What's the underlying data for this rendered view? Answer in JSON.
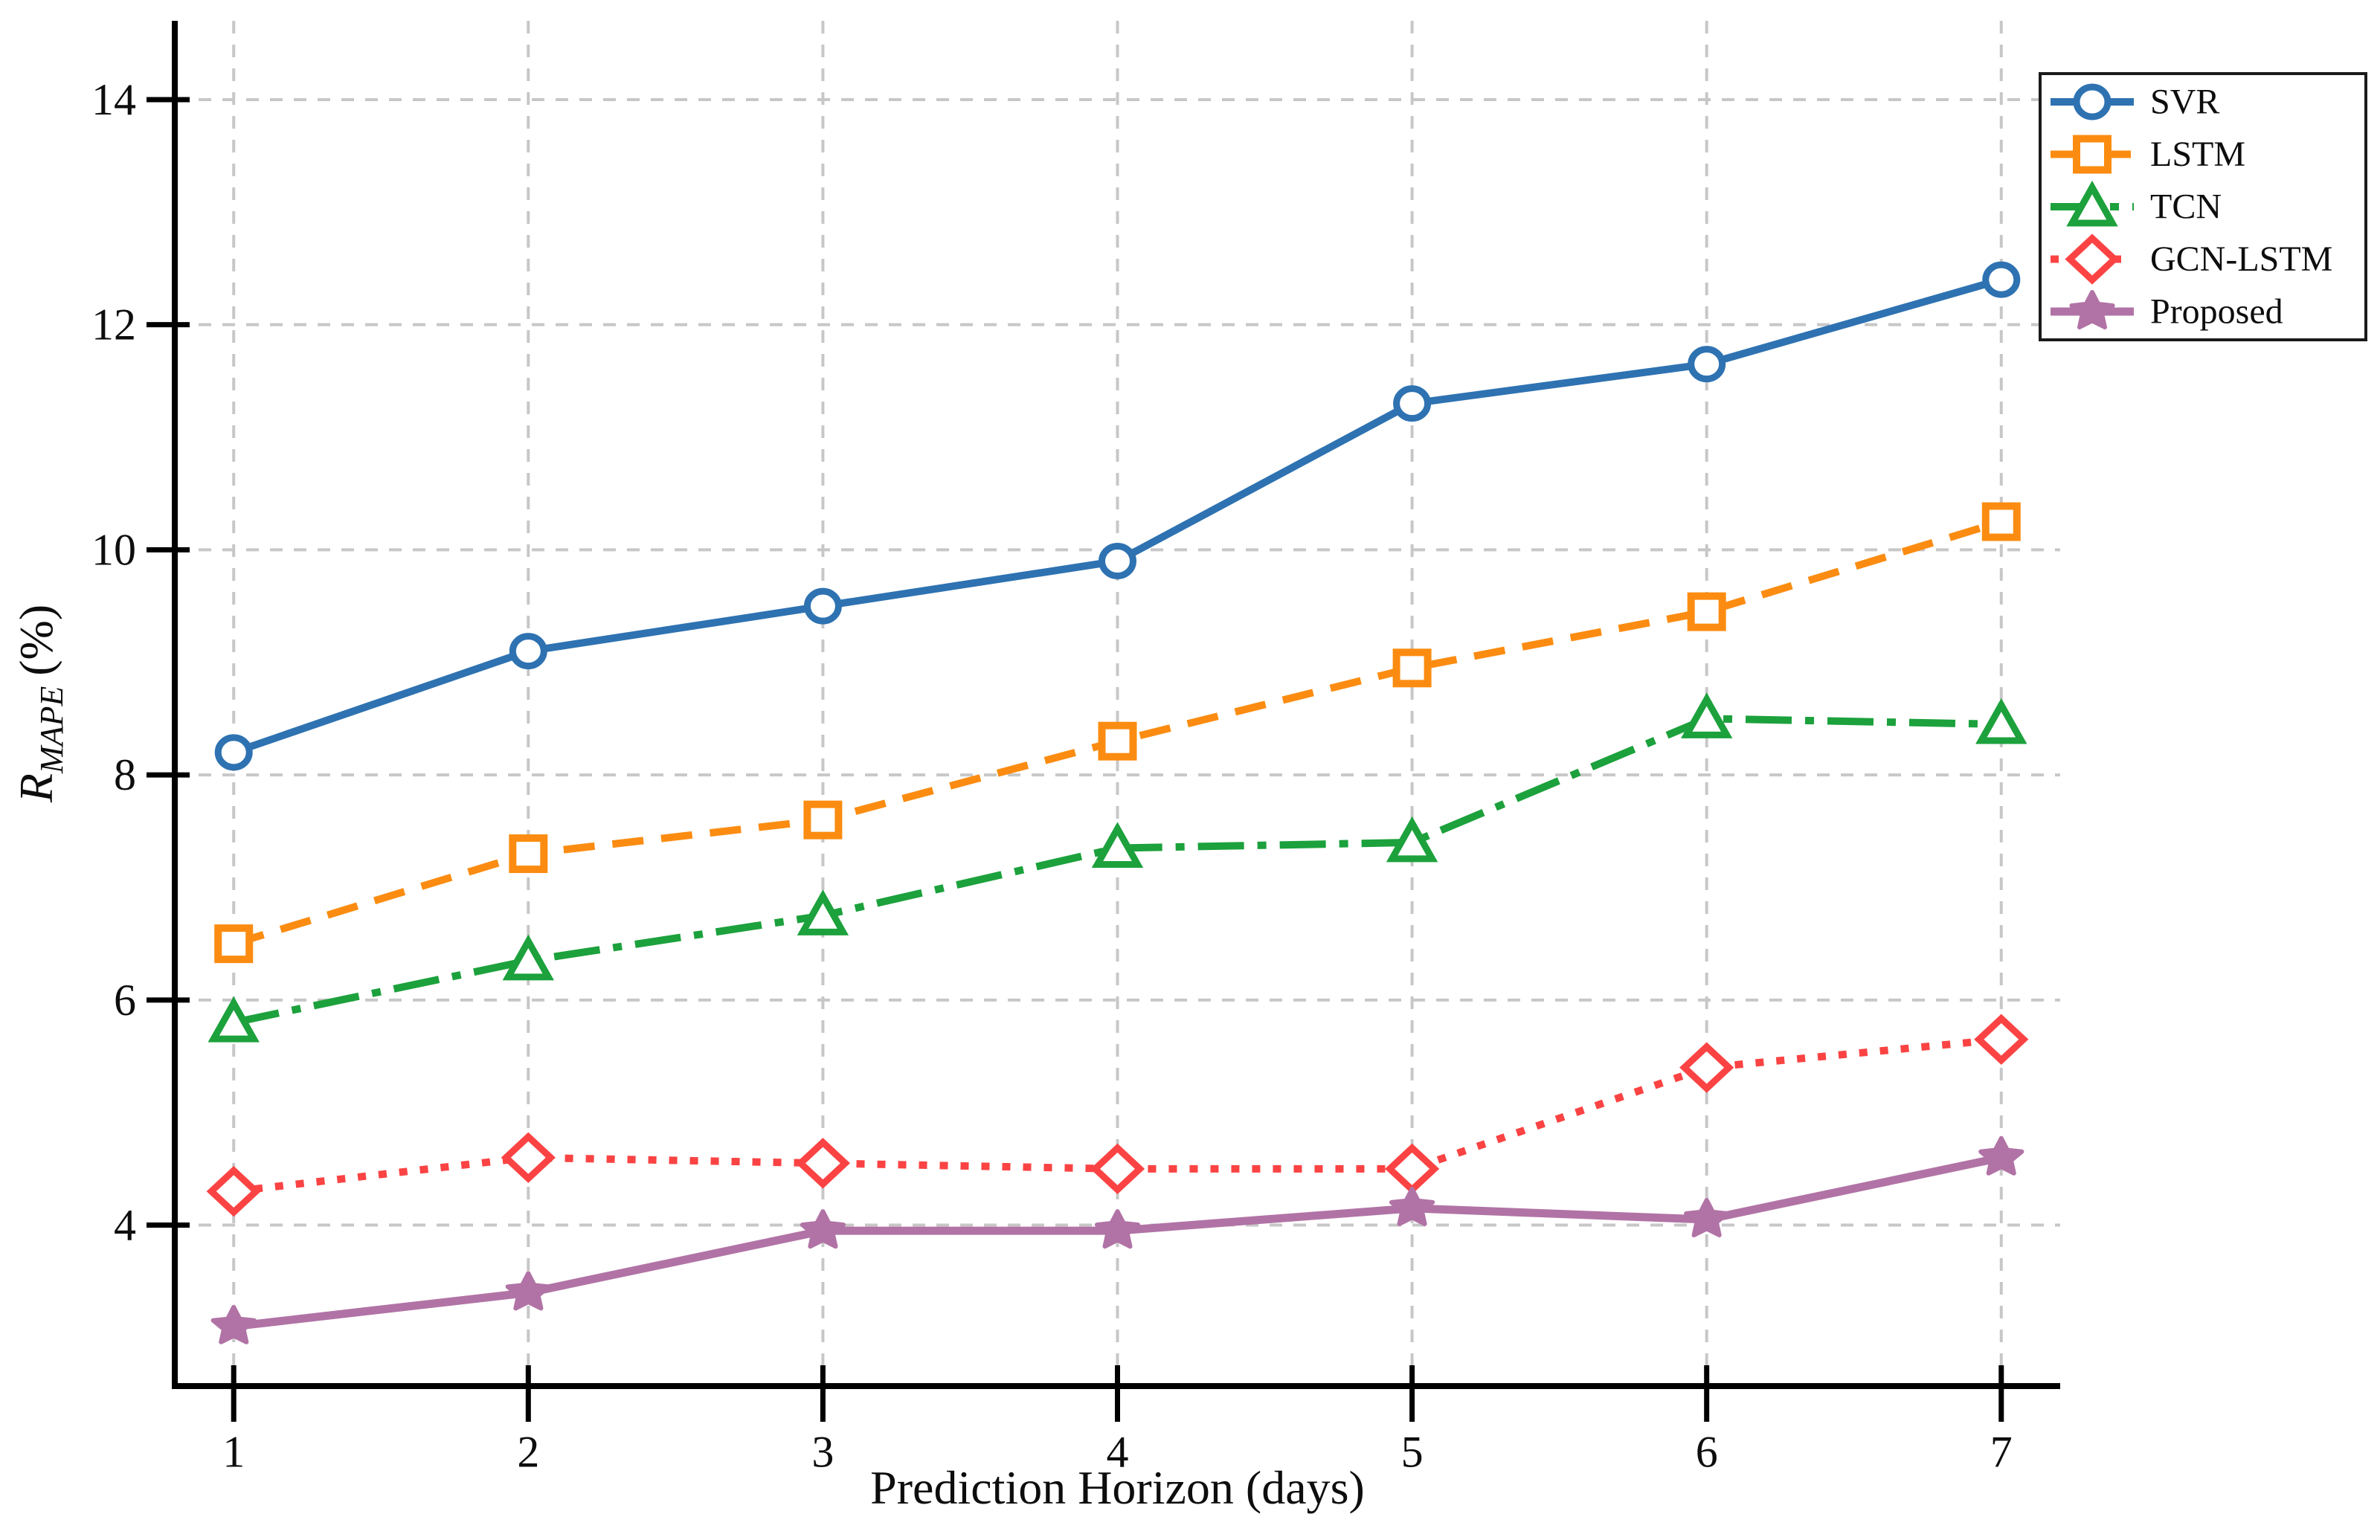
{
  "chart_data": {
    "type": "line",
    "title": "",
    "xlabel": "Prediction Horizon (days)",
    "ylabel": "R_MAPE (%)",
    "ylabel_parts": {
      "symbol": "R",
      "subscript": "MAPE",
      "suffix": "(%)"
    },
    "x": [
      1,
      2,
      3,
      4,
      5,
      6,
      7
    ],
    "xticks": [
      1,
      2,
      3,
      4,
      5,
      6,
      7
    ],
    "yticks": [
      4,
      6,
      8,
      10,
      12,
      14
    ],
    "xlim": [
      0.8,
      7.2
    ],
    "ylim": [
      2.57,
      14.7
    ],
    "grid": true,
    "grid_color": "#c7c7c7",
    "legend_position": "upper right",
    "series": [
      {
        "name": "SVR",
        "color": "#2e72b1",
        "marker": "circle",
        "linestyle": "solid",
        "values": [
          8.2,
          9.1,
          9.5,
          9.9,
          11.3,
          11.65,
          12.4
        ]
      },
      {
        "name": "LSTM",
        "color": "#fb8c11",
        "marker": "square",
        "linestyle": "dashed",
        "values": [
          6.5,
          7.3,
          7.6,
          8.3,
          8.95,
          9.45,
          10.25
        ]
      },
      {
        "name": "TCN",
        "color": "#1ca13c",
        "marker": "triangle",
        "linestyle": "dashdot",
        "values": [
          5.8,
          6.35,
          6.75,
          7.35,
          7.4,
          8.5,
          8.45
        ]
      },
      {
        "name": "GCN-LSTM",
        "color": "#fb4343",
        "marker": "diamond",
        "linestyle": "dotted",
        "values": [
          4.3,
          4.6,
          4.55,
          4.5,
          4.5,
          5.4,
          5.65
        ]
      },
      {
        "name": "Proposed",
        "color": "#b173a5",
        "marker": "star",
        "linestyle": "solid",
        "values": [
          3.1,
          3.4,
          3.95,
          3.95,
          4.15,
          4.05,
          4.6
        ]
      }
    ]
  },
  "colors": {
    "background": "#ffffff",
    "axis": "#000000",
    "text": "#0d0d0d",
    "grid": "#c7c7c7",
    "legend_border": "#1a1a1a",
    "legend_background": "#ffffff"
  }
}
